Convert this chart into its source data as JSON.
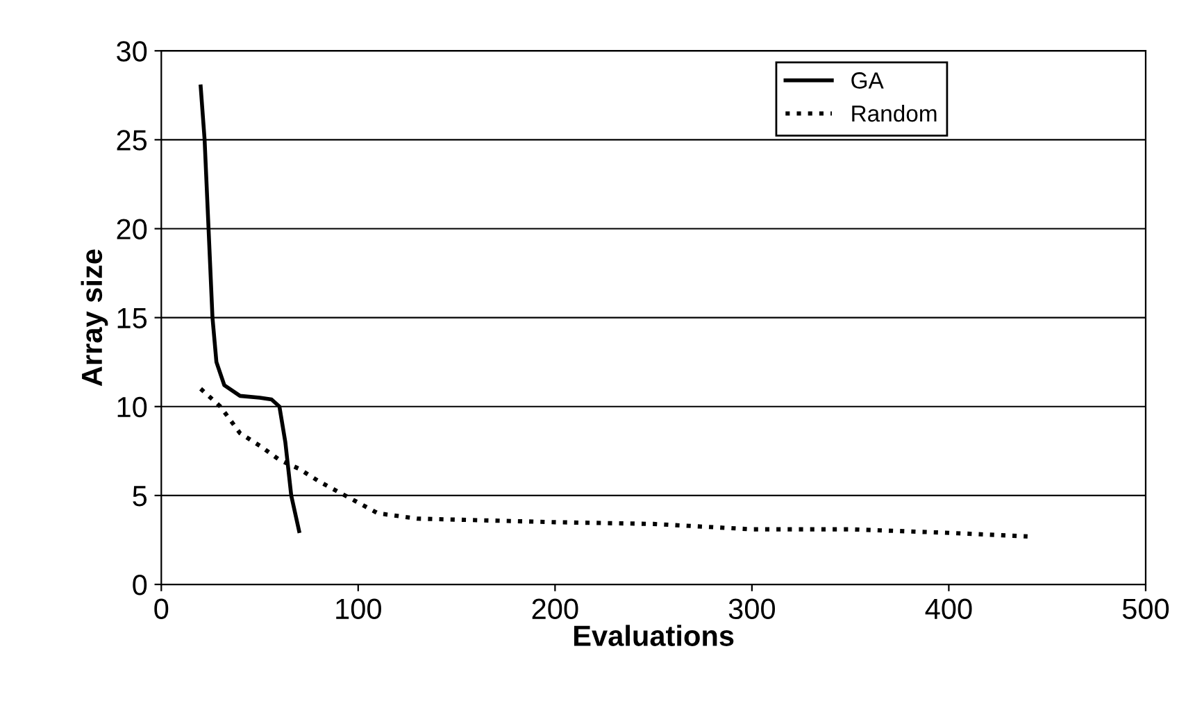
{
  "chart_data": {
    "type": "line",
    "xlabel": "Evaluations",
    "ylabel": "Array size",
    "xlim": [
      0,
      500
    ],
    "ylim": [
      0,
      30
    ],
    "xticks": [
      0,
      100,
      200,
      300,
      400,
      500
    ],
    "yticks": [
      0,
      5,
      10,
      15,
      20,
      25,
      30
    ],
    "grid": "y",
    "legend": "top right",
    "marker": "none",
    "series": [
      {
        "name": "GA",
        "color": "#000000",
        "line_style": "solid",
        "x": [
          20,
          22,
          24,
          26,
          28,
          32,
          40,
          50,
          56,
          60,
          63,
          66,
          70
        ],
        "values": [
          28,
          25,
          20,
          15,
          12.5,
          11.2,
          10.6,
          10.5,
          10.4,
          10,
          8,
          5,
          3
        ]
      },
      {
        "name": "Random",
        "color": "#000000",
        "line_style": "dotted",
        "x": [
          20,
          30,
          40,
          50,
          60,
          70,
          80,
          90,
          100,
          110,
          130,
          200,
          250,
          300,
          350,
          400,
          440
        ],
        "values": [
          11,
          10,
          8.5,
          7.8,
          7,
          6.5,
          5.8,
          5.2,
          4.6,
          4,
          3.7,
          3.5,
          3.4,
          3.1,
          3.1,
          2.9,
          2.7
        ]
      }
    ]
  }
}
